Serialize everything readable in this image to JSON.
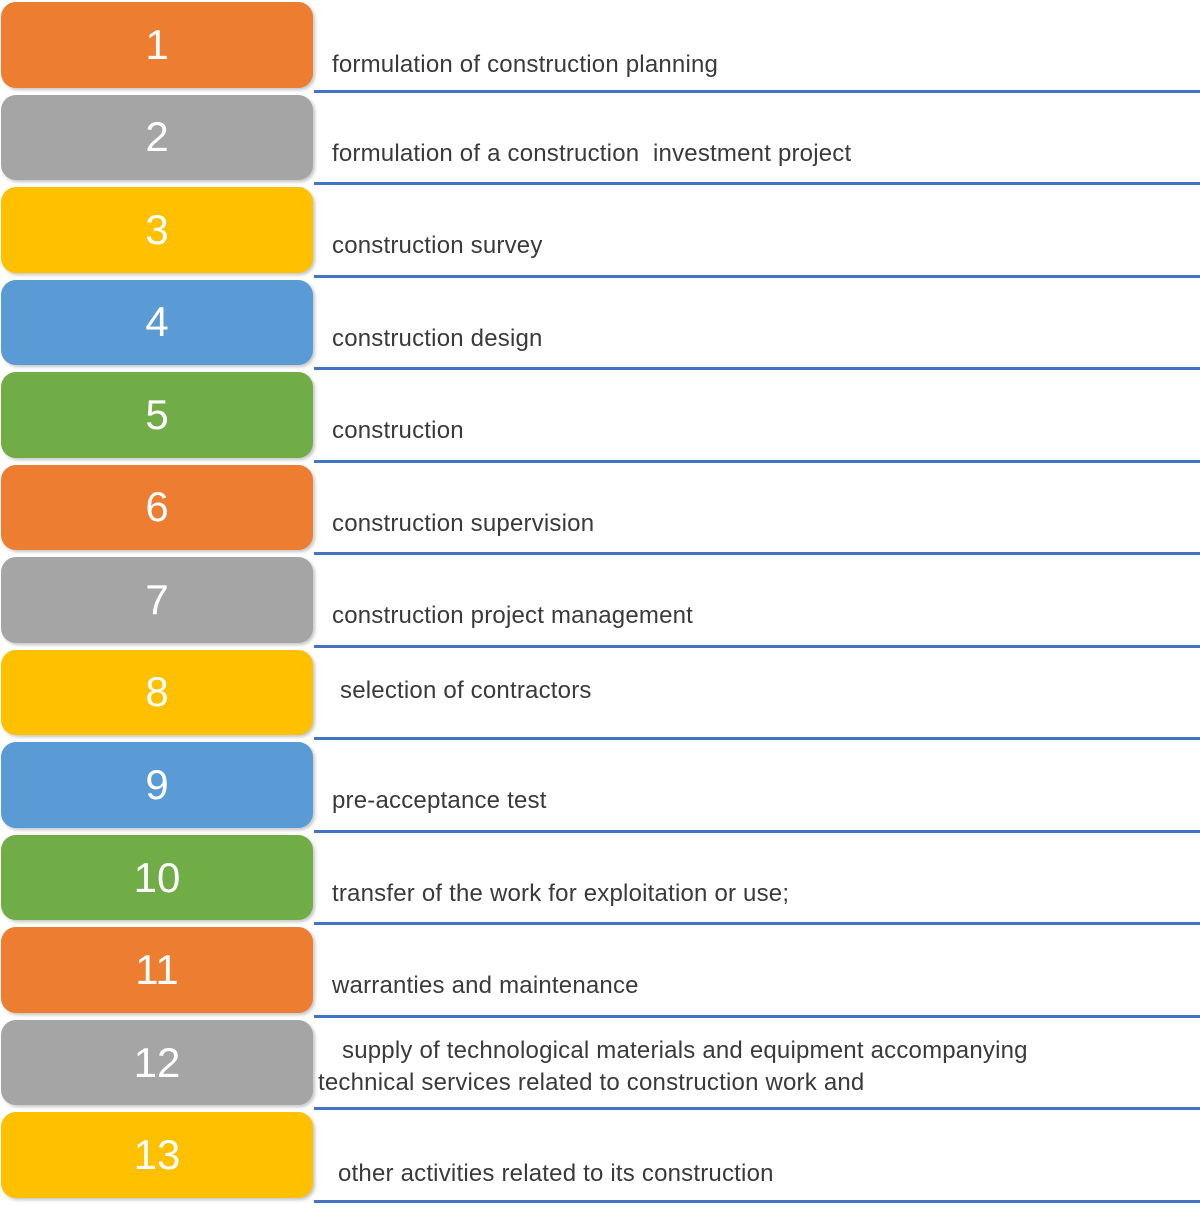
{
  "diagram": {
    "type": "numbered-process-list",
    "separator_color": "#4472C4",
    "number_text_color": "#ffffff",
    "label_text_color": "#3A3A3A",
    "steps": [
      {
        "number": "1",
        "label": "formulation of construction planning",
        "color": "#ED7D31"
      },
      {
        "number": "2",
        "label": "formulation of a construction  investment project",
        "color": "#A5A5A5"
      },
      {
        "number": "3",
        "label": "construction survey",
        "color": "#FFC000"
      },
      {
        "number": "4",
        "label": "construction design",
        "color": "#5B9BD5"
      },
      {
        "number": "5",
        "label": "construction",
        "color": "#70AD47"
      },
      {
        "number": "6",
        "label": "construction supervision",
        "color": "#ED7D31"
      },
      {
        "number": "7",
        "label": "construction project management",
        "color": "#A5A5A5"
      },
      {
        "number": "8",
        "label": "selection of contractors",
        "color": "#FFC000"
      },
      {
        "number": "9",
        "label": "pre-acceptance test",
        "color": "#5B9BD5"
      },
      {
        "number": "10",
        "label": "transfer of the work for exploitation or use;",
        "color": "#70AD47"
      },
      {
        "number": "11",
        "label": "warranties and maintenance",
        "color": "#ED7D31"
      },
      {
        "number": "12",
        "label": "supply of technological materials and equipment accompanying\ntechnical services related to construction work and",
        "color": "#A5A5A5"
      },
      {
        "number": "13",
        "label": "other activities related to its construction",
        "color": "#FFC000"
      }
    ]
  }
}
